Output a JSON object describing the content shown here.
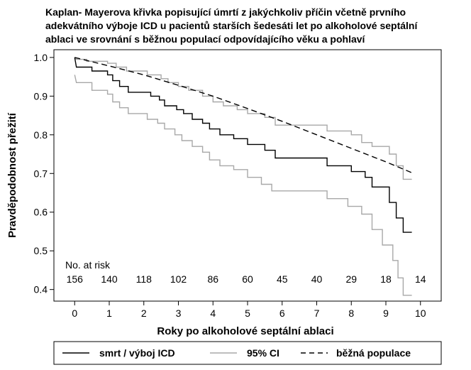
{
  "chart_data": {
    "type": "line",
    "title_lines": [
      "Kaplan- Mayerova křivka popisující úmrtí z jakýchkoliv příčin včetně prvního",
      "adekvátního výboje ICD u pacientů starších šedesáti let po alkoholové septální",
      "ablaci ve srovnání s běžnou populací odpovídajícího věku a pohlaví"
    ],
    "xlabel": "Roky po alkoholové septální ablaci",
    "ylabel": "Pravděpodobnost přežití",
    "xlim": [
      -0.6,
      10.6
    ],
    "ylim": [
      0.37,
      1.02
    ],
    "x_ticks": [
      0,
      1,
      2,
      3,
      4,
      5,
      6,
      7,
      8,
      9,
      10
    ],
    "y_ticks": [
      0.4,
      0.5,
      0.6,
      0.7,
      0.8,
      0.9,
      1.0
    ],
    "y_tick_labels": [
      "0.4",
      "0.5",
      "0.6",
      "0.7",
      "0.8",
      "0.9",
      "1.0"
    ],
    "grid": false,
    "legend_position": "bottom",
    "series": [
      {
        "name": "smrt / výboj ICD",
        "style": "solid",
        "color": "#000000",
        "step": true,
        "points": [
          [
            0,
            1.0
          ],
          [
            0.05,
            0.975
          ],
          [
            0.5,
            0.975
          ],
          [
            0.5,
            0.965
          ],
          [
            0.95,
            0.965
          ],
          [
            0.95,
            0.955
          ],
          [
            1.1,
            0.955
          ],
          [
            1.1,
            0.94
          ],
          [
            1.3,
            0.94
          ],
          [
            1.3,
            0.925
          ],
          [
            1.55,
            0.925
          ],
          [
            1.55,
            0.91
          ],
          [
            2.2,
            0.91
          ],
          [
            2.2,
            0.9
          ],
          [
            2.45,
            0.9
          ],
          [
            2.45,
            0.89
          ],
          [
            2.6,
            0.89
          ],
          [
            2.6,
            0.875
          ],
          [
            2.95,
            0.875
          ],
          [
            2.95,
            0.865
          ],
          [
            3.15,
            0.865
          ],
          [
            3.15,
            0.855
          ],
          [
            3.4,
            0.855
          ],
          [
            3.4,
            0.84
          ],
          [
            3.7,
            0.84
          ],
          [
            3.7,
            0.83
          ],
          [
            3.9,
            0.83
          ],
          [
            3.9,
            0.815
          ],
          [
            4.2,
            0.815
          ],
          [
            4.2,
            0.8
          ],
          [
            4.6,
            0.8
          ],
          [
            4.6,
            0.79
          ],
          [
            5.0,
            0.79
          ],
          [
            5.0,
            0.775
          ],
          [
            5.5,
            0.775
          ],
          [
            5.5,
            0.76
          ],
          [
            5.8,
            0.76
          ],
          [
            5.8,
            0.74
          ],
          [
            7.3,
            0.74
          ],
          [
            7.3,
            0.72
          ],
          [
            8.0,
            0.72
          ],
          [
            8.0,
            0.705
          ],
          [
            8.4,
            0.705
          ],
          [
            8.4,
            0.69
          ],
          [
            8.6,
            0.69
          ],
          [
            8.6,
            0.665
          ],
          [
            9.1,
            0.665
          ],
          [
            9.1,
            0.625
          ],
          [
            9.3,
            0.625
          ],
          [
            9.3,
            0.585
          ],
          [
            9.5,
            0.585
          ],
          [
            9.5,
            0.548
          ],
          [
            9.75,
            0.548
          ]
        ]
      },
      {
        "name": "95% CI",
        "style": "solid",
        "color": "#a8a8a8",
        "step": true,
        "points": [
          [
            0,
            1.0
          ],
          [
            0.05,
            0.995
          ],
          [
            0.35,
            0.995
          ],
          [
            0.35,
            0.99
          ],
          [
            0.95,
            0.99
          ],
          [
            0.95,
            0.985
          ],
          [
            1.2,
            0.985
          ],
          [
            1.2,
            0.975
          ],
          [
            1.5,
            0.975
          ],
          [
            1.5,
            0.965
          ],
          [
            2.1,
            0.965
          ],
          [
            2.1,
            0.955
          ],
          [
            2.5,
            0.955
          ],
          [
            2.5,
            0.945
          ],
          [
            2.7,
            0.945
          ],
          [
            2.7,
            0.935
          ],
          [
            3.0,
            0.935
          ],
          [
            3.0,
            0.925
          ],
          [
            3.3,
            0.925
          ],
          [
            3.3,
            0.915
          ],
          [
            3.7,
            0.915
          ],
          [
            3.7,
            0.9
          ],
          [
            4.0,
            0.9
          ],
          [
            4.0,
            0.885
          ],
          [
            4.3,
            0.885
          ],
          [
            4.3,
            0.875
          ],
          [
            4.7,
            0.875
          ],
          [
            4.7,
            0.865
          ],
          [
            5.0,
            0.865
          ],
          [
            5.0,
            0.855
          ],
          [
            5.5,
            0.855
          ],
          [
            5.5,
            0.845
          ],
          [
            5.8,
            0.845
          ],
          [
            5.8,
            0.825
          ],
          [
            7.3,
            0.825
          ],
          [
            7.3,
            0.81
          ],
          [
            8.0,
            0.81
          ],
          [
            8.0,
            0.8
          ],
          [
            8.3,
            0.8
          ],
          [
            8.3,
            0.78
          ],
          [
            8.6,
            0.78
          ],
          [
            8.6,
            0.77
          ],
          [
            9.1,
            0.77
          ],
          [
            9.1,
            0.75
          ],
          [
            9.3,
            0.75
          ],
          [
            9.3,
            0.72
          ],
          [
            9.5,
            0.72
          ],
          [
            9.5,
            0.685
          ],
          [
            9.75,
            0.685
          ]
        ]
      },
      {
        "name": "95% CI",
        "style": "solid",
        "color": "#a8a8a8",
        "step": true,
        "points": [
          [
            0,
            0.955
          ],
          [
            0.05,
            0.935
          ],
          [
            0.5,
            0.935
          ],
          [
            0.5,
            0.915
          ],
          [
            0.95,
            0.915
          ],
          [
            0.95,
            0.905
          ],
          [
            1.1,
            0.905
          ],
          [
            1.1,
            0.885
          ],
          [
            1.3,
            0.885
          ],
          [
            1.3,
            0.87
          ],
          [
            1.55,
            0.87
          ],
          [
            1.55,
            0.855
          ],
          [
            2.1,
            0.855
          ],
          [
            2.1,
            0.84
          ],
          [
            2.4,
            0.84
          ],
          [
            2.4,
            0.83
          ],
          [
            2.6,
            0.83
          ],
          [
            2.6,
            0.815
          ],
          [
            2.9,
            0.815
          ],
          [
            2.9,
            0.8
          ],
          [
            3.1,
            0.8
          ],
          [
            3.1,
            0.785
          ],
          [
            3.4,
            0.785
          ],
          [
            3.4,
            0.77
          ],
          [
            3.7,
            0.77
          ],
          [
            3.7,
            0.755
          ],
          [
            3.9,
            0.755
          ],
          [
            3.9,
            0.735
          ],
          [
            4.2,
            0.735
          ],
          [
            4.2,
            0.72
          ],
          [
            4.6,
            0.72
          ],
          [
            4.6,
            0.71
          ],
          [
            5.0,
            0.71
          ],
          [
            5.0,
            0.69
          ],
          [
            5.4,
            0.69
          ],
          [
            5.4,
            0.672
          ],
          [
            5.7,
            0.672
          ],
          [
            5.7,
            0.655
          ],
          [
            7.3,
            0.655
          ],
          [
            7.3,
            0.635
          ],
          [
            7.9,
            0.635
          ],
          [
            7.9,
            0.615
          ],
          [
            8.3,
            0.615
          ],
          [
            8.3,
            0.595
          ],
          [
            8.6,
            0.595
          ],
          [
            8.6,
            0.555
          ],
          [
            8.9,
            0.555
          ],
          [
            8.9,
            0.515
          ],
          [
            9.2,
            0.515
          ],
          [
            9.2,
            0.475
          ],
          [
            9.35,
            0.475
          ],
          [
            9.35,
            0.43
          ],
          [
            9.5,
            0.43
          ],
          [
            9.5,
            0.385
          ],
          [
            9.75,
            0.385
          ]
        ]
      },
      {
        "name": "běžná populace",
        "style": "dashed",
        "color": "#000000",
        "step": false,
        "points": [
          [
            0,
            1.0
          ],
          [
            1,
            0.978
          ],
          [
            2,
            0.955
          ],
          [
            3,
            0.928
          ],
          [
            4,
            0.9
          ],
          [
            5,
            0.868
          ],
          [
            6,
            0.835
          ],
          [
            7,
            0.8
          ],
          [
            8,
            0.765
          ],
          [
            9,
            0.73
          ],
          [
            9.75,
            0.702
          ]
        ]
      }
    ],
    "at_risk": {
      "label": "No. at risk",
      "x": [
        0,
        1,
        2,
        3,
        4,
        5,
        6,
        7,
        8,
        9,
        10
      ],
      "counts": [
        "156",
        "140",
        "118",
        "102",
        "86",
        "60",
        "45",
        "40",
        "29",
        "18",
        "14"
      ]
    },
    "legend": [
      {
        "label": "smrt / výboj ICD",
        "style": "solid",
        "color": "#000000"
      },
      {
        "label": "95% CI",
        "style": "solid",
        "color": "#a8a8a8"
      },
      {
        "label": "běžná populace",
        "style": "dashed",
        "color": "#000000"
      }
    ]
  }
}
